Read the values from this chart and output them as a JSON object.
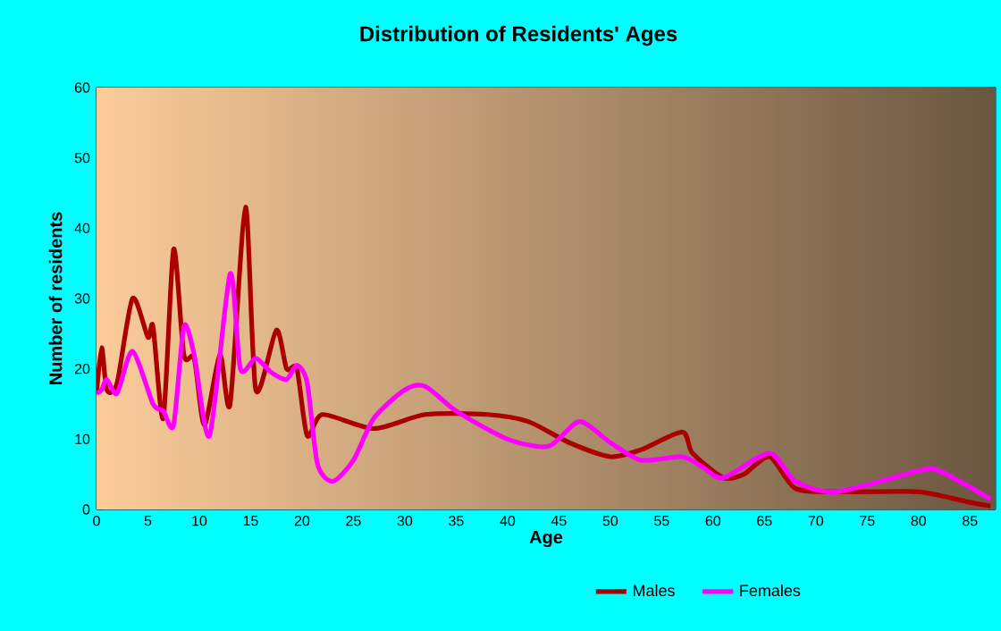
{
  "chart_data": {
    "type": "line",
    "title": "Distribution of Residents' Ages",
    "xlabel": "Age",
    "ylabel": "Number of residents",
    "xlim": [
      0,
      87.5
    ],
    "ylim": [
      0,
      60
    ],
    "xticks": [
      0,
      5,
      10,
      15,
      20,
      25,
      30,
      35,
      40,
      45,
      50,
      55,
      60,
      65,
      70,
      75,
      80,
      85
    ],
    "yticks": [
      0,
      10,
      20,
      30,
      40,
      50,
      60
    ],
    "grid": true,
    "legend": "bottom",
    "series": [
      {
        "name": "Males",
        "color": "#aa0000",
        "x": [
          0,
          0.5,
          1,
          2,
          3.5,
          5,
          5.5,
          6.5,
          7.5,
          8.5,
          9.5,
          10.5,
          12,
          13,
          14.5,
          15.5,
          17.5,
          18.5,
          19.5,
          20.5,
          22,
          27,
          32,
          38,
          42,
          46,
          50,
          53,
          57,
          58,
          61,
          63,
          65.5,
          68,
          72,
          80,
          85,
          87
        ],
        "values": [
          16.5,
          23,
          17,
          18,
          30,
          24.5,
          26,
          13,
          37,
          22,
          21.5,
          12,
          22,
          15,
          43,
          17,
          25.5,
          20,
          20,
          10.5,
          13.5,
          11.5,
          13.5,
          13.5,
          12.5,
          9.5,
          7.5,
          8.5,
          11,
          8,
          4.5,
          5,
          7.5,
          3,
          2.5,
          2.5,
          1,
          0.5
        ]
      },
      {
        "name": "Females",
        "color": "#ff00ff",
        "x": [
          0,
          0.5,
          1,
          2,
          3.5,
          5.5,
          6.5,
          7.5,
          8.5,
          9.5,
          11,
          13,
          14,
          15.5,
          17,
          18.5,
          19.5,
          20.5,
          21.5,
          23,
          25,
          27,
          30,
          32,
          35,
          40,
          44,
          47,
          50,
          53,
          57,
          59,
          61,
          65.5,
          68,
          72,
          80,
          82,
          87
        ],
        "values": [
          16.5,
          17,
          18.5,
          16.5,
          22.5,
          15,
          14,
          12,
          26,
          22,
          10.5,
          33.5,
          20,
          21.5,
          19.5,
          18.5,
          20.5,
          18,
          6.5,
          4,
          7,
          13,
          17,
          17.5,
          14,
          10,
          9,
          12.5,
          9.5,
          7,
          7.5,
          6,
          4.5,
          8,
          4,
          2.5,
          5.5,
          5.5,
          1.5
        ]
      }
    ]
  }
}
